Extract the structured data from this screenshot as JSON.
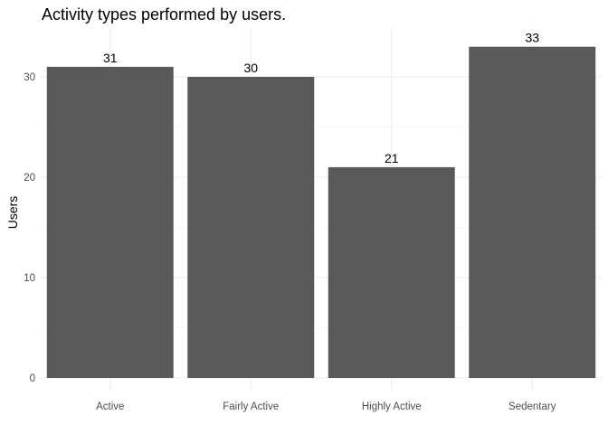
{
  "chart_data": {
    "type": "bar",
    "title": "Activity types performed by users.",
    "xlabel": "",
    "ylabel": "Users",
    "categories": [
      "Active",
      "Fairly Active",
      "Highly Active",
      "Sedentary"
    ],
    "values": [
      31,
      30,
      21,
      33
    ],
    "data_labels": [
      "31",
      "30",
      "21",
      "33"
    ],
    "ylim": [
      0,
      35
    ],
    "yticks": [
      0,
      10,
      20,
      30
    ],
    "ytick_labels": [
      "0",
      "10",
      "20",
      "30"
    ],
    "grid": true,
    "legend": "none",
    "colors": {
      "bar": "#595959",
      "grid_major": "#ebebeb",
      "grid_minor": "#f5f5f5"
    }
  }
}
